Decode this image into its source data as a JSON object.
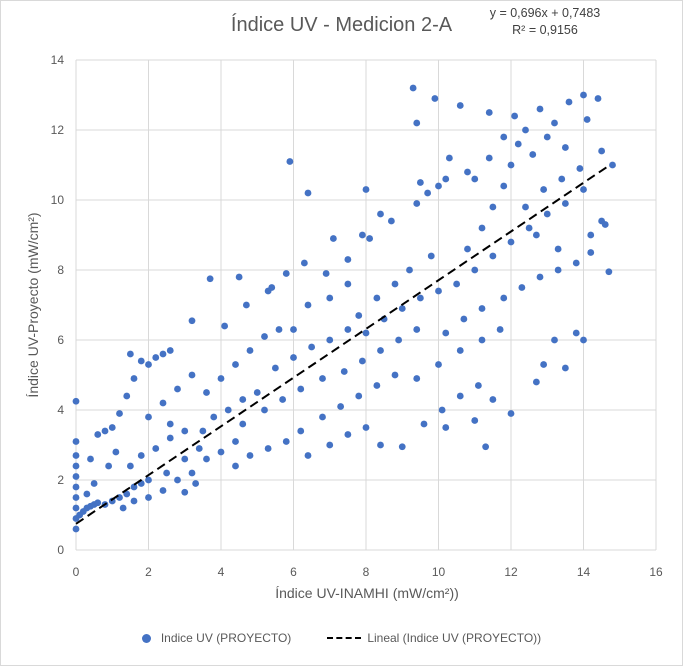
{
  "chart_data": {
    "type": "scatter",
    "title": "Índice UV - Medicion 2-A",
    "xlabel": "Índice UV-INAMHI (mW/cm²))",
    "ylabel": "Índice UV-Proyecto (mW/cm²)",
    "xlim": [
      0,
      16
    ],
    "ylim": [
      0,
      14
    ],
    "x_ticks": [
      "0",
      "2",
      "4",
      "6",
      "8",
      "10",
      "12",
      "14",
      "16"
    ],
    "y_ticks": [
      "0",
      "2",
      "4",
      "6",
      "8",
      "10",
      "12",
      "14"
    ],
    "grid": true,
    "legend_position": "bottom",
    "trendline": {
      "type": "linear",
      "slope": 0.696,
      "intercept": 0.7483,
      "x_range": [
        0,
        14.7
      ],
      "equation_label": "y = 0,696x + 0,7483",
      "r2_label": "R² = 0,9156"
    },
    "series": [
      {
        "name": "Indice UV (PROYECTO)",
        "color": "#4472C4",
        "points": [
          [
            0,
            0.6
          ],
          [
            0,
            0.9
          ],
          [
            0,
            1.2
          ],
          [
            0,
            1.5
          ],
          [
            0,
            1.8
          ],
          [
            0,
            2.1
          ],
          [
            0,
            2.4
          ],
          [
            0,
            2.7
          ],
          [
            0,
            3.1
          ],
          [
            0,
            4.25
          ],
          [
            0.1,
            1.0
          ],
          [
            0.2,
            1.1
          ],
          [
            0.3,
            1.2
          ],
          [
            0.4,
            1.25
          ],
          [
            0.5,
            1.3
          ],
          [
            0.6,
            1.35
          ],
          [
            0.3,
            1.6
          ],
          [
            0.5,
            1.9
          ],
          [
            0.4,
            2.6
          ],
          [
            0.6,
            3.3
          ],
          [
            0.8,
            1.3
          ],
          [
            1.0,
            1.4
          ],
          [
            1.2,
            1.5
          ],
          [
            1.4,
            1.6
          ],
          [
            1.6,
            1.8
          ],
          [
            1.8,
            1.9
          ],
          [
            2.0,
            2.0
          ],
          [
            0.9,
            2.4
          ],
          [
            1.1,
            2.8
          ],
          [
            1.0,
            3.5
          ],
          [
            0.8,
            3.4
          ],
          [
            1.2,
            3.9
          ],
          [
            1.4,
            4.4
          ],
          [
            1.6,
            4.9
          ],
          [
            1.8,
            5.4
          ],
          [
            2.0,
            5.3
          ],
          [
            2.2,
            5.5
          ],
          [
            1.5,
            5.6
          ],
          [
            2.4,
            5.6
          ],
          [
            2.6,
            5.7
          ],
          [
            1.3,
            1.2
          ],
          [
            1.6,
            1.4
          ],
          [
            2.0,
            1.5
          ],
          [
            2.4,
            1.7
          ],
          [
            2.8,
            2.0
          ],
          [
            1.5,
            2.4
          ],
          [
            1.8,
            2.7
          ],
          [
            2.2,
            2.9
          ],
          [
            2.6,
            3.2
          ],
          [
            3.0,
            3.4
          ],
          [
            2.0,
            3.8
          ],
          [
            2.4,
            4.2
          ],
          [
            2.8,
            4.6
          ],
          [
            3.2,
            5.0
          ],
          [
            2.6,
            3.6
          ],
          [
            3.0,
            2.6
          ],
          [
            3.4,
            2.9
          ],
          [
            2.5,
            2.2
          ],
          [
            3.3,
            1.9
          ],
          [
            3.0,
            1.65
          ],
          [
            3.2,
            2.2
          ],
          [
            3.6,
            2.6
          ],
          [
            4.0,
            2.8
          ],
          [
            4.4,
            3.1
          ],
          [
            3.5,
            3.4
          ],
          [
            3.8,
            3.8
          ],
          [
            4.2,
            4.0
          ],
          [
            4.6,
            4.3
          ],
          [
            5.0,
            4.5
          ],
          [
            3.6,
            4.5
          ],
          [
            4.0,
            4.9
          ],
          [
            4.4,
            5.3
          ],
          [
            4.8,
            5.7
          ],
          [
            5.2,
            6.1
          ],
          [
            5.6,
            6.3
          ],
          [
            4.1,
            6.4
          ],
          [
            4.7,
            7.0
          ],
          [
            5.3,
            7.4
          ],
          [
            5.8,
            7.9
          ],
          [
            3.2,
            6.55
          ],
          [
            4.4,
            2.4
          ],
          [
            4.8,
            2.7
          ],
          [
            5.3,
            2.9
          ],
          [
            5.8,
            3.1
          ],
          [
            6.2,
            3.4
          ],
          [
            4.6,
            3.6
          ],
          [
            5.2,
            4.0
          ],
          [
            5.7,
            4.3
          ],
          [
            6.2,
            4.6
          ],
          [
            6.8,
            4.9
          ],
          [
            5.5,
            5.2
          ],
          [
            6.0,
            5.5
          ],
          [
            6.5,
            5.8
          ],
          [
            7.0,
            6.0
          ],
          [
            7.5,
            6.3
          ],
          [
            6.0,
            6.3
          ],
          [
            6.4,
            7.0
          ],
          [
            7.0,
            7.2
          ],
          [
            7.5,
            7.6
          ],
          [
            6.3,
            8.2
          ],
          [
            6.4,
            2.7
          ],
          [
            7.0,
            3.0
          ],
          [
            7.5,
            3.3
          ],
          [
            8.0,
            3.5
          ],
          [
            8.4,
            3.0
          ],
          [
            6.8,
            3.8
          ],
          [
            7.3,
            4.1
          ],
          [
            7.8,
            4.4
          ],
          [
            8.3,
            4.7
          ],
          [
            8.8,
            5.0
          ],
          [
            7.4,
            5.1
          ],
          [
            7.9,
            5.4
          ],
          [
            8.4,
            5.7
          ],
          [
            8.9,
            6.0
          ],
          [
            9.4,
            6.3
          ],
          [
            8.0,
            6.2
          ],
          [
            8.5,
            6.6
          ],
          [
            9.0,
            6.9
          ],
          [
            9.5,
            7.2
          ],
          [
            10.0,
            7.4
          ],
          [
            7.8,
            6.7
          ],
          [
            8.3,
            7.2
          ],
          [
            8.8,
            7.6
          ],
          [
            9.2,
            8.0
          ],
          [
            9.8,
            8.4
          ],
          [
            7.5,
            8.3
          ],
          [
            8.1,
            8.9
          ],
          [
            8.7,
            9.4
          ],
          [
            9.4,
            9.9
          ],
          [
            10.0,
            10.4
          ],
          [
            9.0,
            2.95
          ],
          [
            9.6,
            3.6
          ],
          [
            10.1,
            4.0
          ],
          [
            10.6,
            4.4
          ],
          [
            11.1,
            4.7
          ],
          [
            9.4,
            4.9
          ],
          [
            10.0,
            5.3
          ],
          [
            10.6,
            5.7
          ],
          [
            11.2,
            6.0
          ],
          [
            11.7,
            6.3
          ],
          [
            10.2,
            6.2
          ],
          [
            10.7,
            6.6
          ],
          [
            11.2,
            6.9
          ],
          [
            11.8,
            7.2
          ],
          [
            12.3,
            7.5
          ],
          [
            12.8,
            7.8
          ],
          [
            13.3,
            8.0
          ],
          [
            13.8,
            8.2
          ],
          [
            14.2,
            8.5
          ],
          [
            14.7,
            7.95
          ],
          [
            10.5,
            7.6
          ],
          [
            11.0,
            8.0
          ],
          [
            11.5,
            8.4
          ],
          [
            12.0,
            8.8
          ],
          [
            12.5,
            9.2
          ],
          [
            13.0,
            9.6
          ],
          [
            13.5,
            9.9
          ],
          [
            14.0,
            10.3
          ],
          [
            14.5,
            9.4
          ],
          [
            14.2,
            9.0
          ],
          [
            10.8,
            8.6
          ],
          [
            11.2,
            9.2
          ],
          [
            11.5,
            9.8
          ],
          [
            11.8,
            10.4
          ],
          [
            12.0,
            11.0
          ],
          [
            12.2,
            11.6
          ],
          [
            11.0,
            10.6
          ],
          [
            11.4,
            11.2
          ],
          [
            11.8,
            11.8
          ],
          [
            12.1,
            12.4
          ],
          [
            12.4,
            12.0
          ],
          [
            12.8,
            12.6
          ],
          [
            13.2,
            12.2
          ],
          [
            13.6,
            12.8
          ],
          [
            14.0,
            13.0
          ],
          [
            14.4,
            12.9
          ],
          [
            12.6,
            11.3
          ],
          [
            13.0,
            11.8
          ],
          [
            13.5,
            11.5
          ],
          [
            14.1,
            12.3
          ],
          [
            9.3,
            13.2
          ],
          [
            9.9,
            12.9
          ],
          [
            10.6,
            12.7
          ],
          [
            11.4,
            12.5
          ],
          [
            9.4,
            12.2
          ],
          [
            10.3,
            11.2
          ],
          [
            10.8,
            10.8
          ],
          [
            10.2,
            10.6
          ],
          [
            9.7,
            10.2
          ],
          [
            9.5,
            10.5
          ],
          [
            5.9,
            11.1
          ],
          [
            6.4,
            10.2
          ],
          [
            8.0,
            10.3
          ],
          [
            8.4,
            9.6
          ],
          [
            7.9,
            9.0
          ],
          [
            7.1,
            8.9
          ],
          [
            6.9,
            7.9
          ],
          [
            5.4,
            7.5
          ],
          [
            4.5,
            7.8
          ],
          [
            3.7,
            7.75
          ],
          [
            12.7,
            4.8
          ],
          [
            12.9,
            5.3
          ],
          [
            13.5,
            5.2
          ],
          [
            13.2,
            6.0
          ],
          [
            13.8,
            6.2
          ],
          [
            14.0,
            6.0
          ],
          [
            12.0,
            3.9
          ],
          [
            11.5,
            4.3
          ],
          [
            11.0,
            3.7
          ],
          [
            10.2,
            3.5
          ],
          [
            14.5,
            11.4
          ],
          [
            14.6,
            9.3
          ],
          [
            14.8,
            11.0
          ],
          [
            13.9,
            10.9
          ],
          [
            13.4,
            10.6
          ],
          [
            12.9,
            10.3
          ],
          [
            12.4,
            9.8
          ],
          [
            12.7,
            9.0
          ],
          [
            13.3,
            8.6
          ],
          [
            11.3,
            2.95
          ]
        ]
      }
    ],
    "legend": [
      "Indice UV (PROYECTO)",
      "Lineal (Indice UV (PROYECTO))"
    ]
  }
}
